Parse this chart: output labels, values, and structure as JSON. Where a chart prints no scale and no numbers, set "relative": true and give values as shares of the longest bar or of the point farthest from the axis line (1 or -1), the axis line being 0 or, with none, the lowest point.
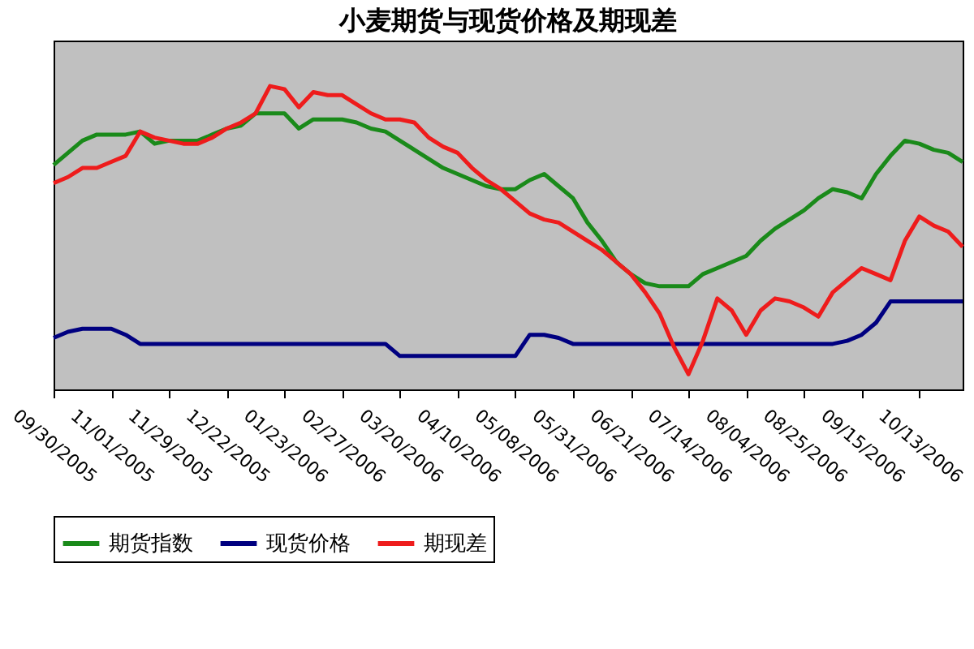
{
  "chart_data": {
    "type": "line",
    "title": "小麦期货与现货价格及期现差",
    "relative": true,
    "legend": "bottom",
    "grid": false,
    "marker": "none",
    "line_style": "solid",
    "categories": [
      "09/30/2005",
      null,
      null,
      null,
      "11/01/2005",
      null,
      null,
      null,
      "11/29/2005",
      null,
      null,
      null,
      "12/22/2005",
      null,
      null,
      null,
      "01/23/2006",
      null,
      null,
      null,
      "02/27/2006",
      null,
      null,
      null,
      "03/20/2006",
      null,
      null,
      null,
      "04/10/2006",
      null,
      null,
      null,
      "05/08/2006",
      null,
      null,
      null,
      "05/31/2006",
      null,
      null,
      null,
      "06/21/2006",
      null,
      null,
      null,
      "07/14/2006",
      null,
      null,
      null,
      "08/04/2006",
      null,
      null,
      null,
      "08/25/2006",
      null,
      null,
      null,
      "09/15/2006",
      null,
      null,
      null,
      "10/13/2006",
      null,
      null,
      null
    ],
    "series": [
      {
        "name": "期货指数",
        "color": "#1a8a1a",
        "values": [
          0.74,
          0.78,
          0.82,
          0.84,
          0.84,
          0.84,
          0.85,
          0.81,
          0.82,
          0.82,
          0.82,
          0.84,
          0.86,
          0.87,
          0.91,
          0.91,
          0.91,
          0.86,
          0.89,
          0.89,
          0.89,
          0.88,
          0.86,
          0.85,
          0.82,
          0.79,
          0.76,
          0.73,
          0.71,
          0.69,
          0.67,
          0.66,
          0.66,
          0.69,
          0.71,
          0.67,
          0.63,
          0.55,
          0.49,
          0.42,
          0.38,
          0.35,
          0.34,
          0.34,
          0.34,
          0.38,
          0.4,
          0.42,
          0.44,
          0.49,
          0.53,
          0.56,
          0.59,
          0.63,
          0.66,
          0.65,
          0.63,
          0.71,
          0.77,
          0.82,
          0.81,
          0.79,
          0.78,
          0.75
        ]
      },
      {
        "name": "现货价格",
        "color": "#000080",
        "values": [
          0.17,
          0.19,
          0.2,
          0.2,
          0.2,
          0.18,
          0.15,
          0.15,
          0.15,
          0.15,
          0.15,
          0.15,
          0.15,
          0.15,
          0.15,
          0.15,
          0.15,
          0.15,
          0.15,
          0.15,
          0.15,
          0.15,
          0.15,
          0.15,
          0.11,
          0.11,
          0.11,
          0.11,
          0.11,
          0.11,
          0.11,
          0.11,
          0.11,
          0.18,
          0.18,
          0.17,
          0.15,
          0.15,
          0.15,
          0.15,
          0.15,
          0.15,
          0.15,
          0.15,
          0.15,
          0.15,
          0.15,
          0.15,
          0.15,
          0.15,
          0.15,
          0.15,
          0.15,
          0.15,
          0.15,
          0.16,
          0.18,
          0.22,
          0.29,
          0.29,
          0.29,
          0.29,
          0.29,
          0.29
        ]
      },
      {
        "name": "期现差",
        "color": "#ee1c1c",
        "values": [
          0.68,
          0.7,
          0.73,
          0.73,
          0.75,
          0.77,
          0.85,
          0.83,
          0.82,
          0.81,
          0.81,
          0.83,
          0.86,
          0.88,
          0.91,
          1,
          0.99,
          0.93,
          0.98,
          0.97,
          0.97,
          0.94,
          0.91,
          0.89,
          0.89,
          0.88,
          0.83,
          0.8,
          0.78,
          0.73,
          0.69,
          0.66,
          0.62,
          0.58,
          0.56,
          0.55,
          0.52,
          0.49,
          0.46,
          0.42,
          0.38,
          0.32,
          0.25,
          0.14,
          0.05,
          0.16,
          0.3,
          0.26,
          0.18,
          0.26,
          0.3,
          0.29,
          0.27,
          0.24,
          0.32,
          0.36,
          0.4,
          0.38,
          0.36,
          0.49,
          0.57,
          0.54,
          0.52,
          0.47
        ]
      }
    ]
  }
}
